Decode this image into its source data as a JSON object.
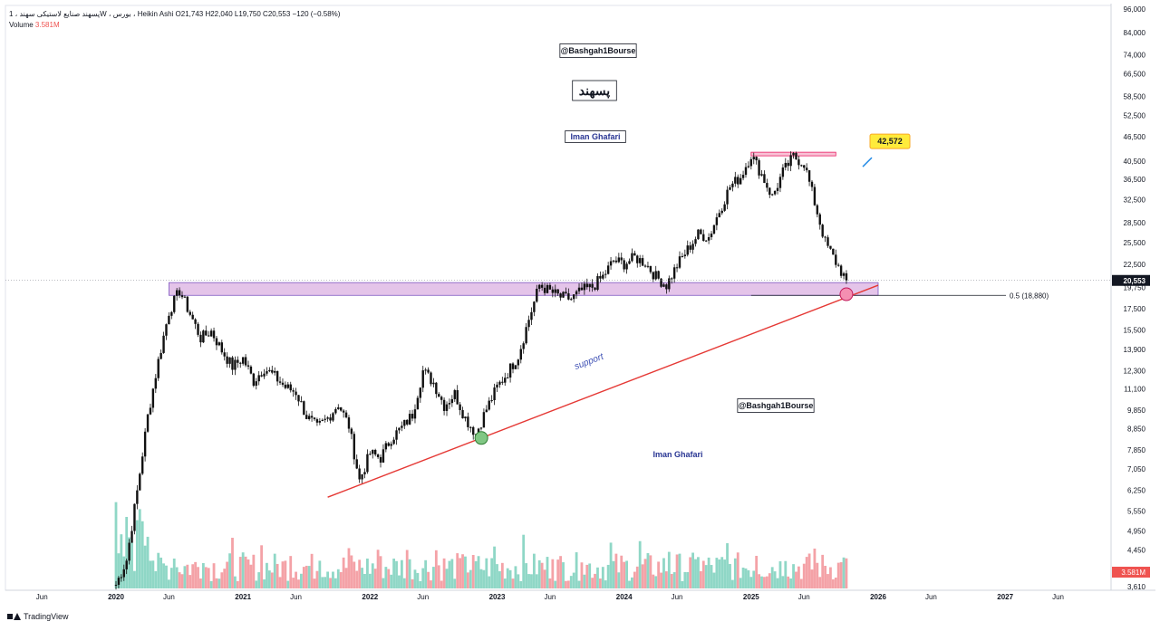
{
  "legend": {
    "symbol_line": "پسهند صنایع لاستیکی سهند ، 1W ، بورس ، Heikin Ashi  O21,743  H22,040  L19,750  C20,553  −120 (−0.58%)",
    "volume_label": "Volume",
    "volume_value": "3.581M"
  },
  "footer": {
    "brand": "TradingView"
  },
  "colors": {
    "candle": "#111111",
    "volume_up": "#8fd7c6",
    "volume_down": "#f4a2a7",
    "trendline": "#e53935",
    "zone_fill": "#e1bee7",
    "zone_border": "#7e57c2",
    "peak_zone": "#f8bbd0",
    "peak_label_bg": "#ffeb3b",
    "low_marker": "#81c784",
    "touch_marker": "#f48fb1",
    "watermark_text": "#1a237e",
    "label_text_blue": "#283593"
  },
  "chart_data": {
    "type": "candlestick",
    "scale": "log",
    "ylim": [
      3610,
      96000
    ],
    "y_ticks": [
      "96,000",
      "84,000",
      "74,000",
      "66,500",
      "58,500",
      "52,500",
      "46,500",
      "40,500",
      "36,500",
      "32,500",
      "28,500",
      "25,500",
      "22,500",
      "19,750",
      "17,500",
      "15,500",
      "13,900",
      "12,300",
      "11,100",
      "9,850",
      "8,850",
      "7,850",
      "7,050",
      "6,250",
      "5,550",
      "4,950",
      "4,450",
      "3,610"
    ],
    "x_labels": [
      "Jun",
      "2020",
      "Jun",
      "2021",
      "Jun",
      "2022",
      "Jun",
      "2023",
      "Jun",
      "2024",
      "Jun",
      "2025",
      "Jun",
      "2026",
      "Jun",
      "2027",
      "Jun"
    ],
    "price_path": [
      {
        "t": "2020-01",
        "v": 3650
      },
      {
        "t": "2020-02",
        "v": 4200
      },
      {
        "t": "2020-03",
        "v": 6200
      },
      {
        "t": "2020-04",
        "v": 9500
      },
      {
        "t": "2020-05",
        "v": 13000
      },
      {
        "t": "2020-06",
        "v": 17200
      },
      {
        "t": "2020-07",
        "v": 19400
      },
      {
        "t": "2020-08",
        "v": 17000
      },
      {
        "t": "2020-09",
        "v": 14800
      },
      {
        "t": "2020-10",
        "v": 15400
      },
      {
        "t": "2020-11",
        "v": 13800
      },
      {
        "t": "2020-12",
        "v": 12600
      },
      {
        "t": "2021-01",
        "v": 13200
      },
      {
        "t": "2021-02",
        "v": 11600
      },
      {
        "t": "2021-03",
        "v": 12500
      },
      {
        "t": "2021-04",
        "v": 11900
      },
      {
        "t": "2021-05",
        "v": 11200
      },
      {
        "t": "2021-06",
        "v": 10900
      },
      {
        "t": "2021-07",
        "v": 9500
      },
      {
        "t": "2021-08",
        "v": 8900
      },
      {
        "t": "2021-09",
        "v": 9400
      },
      {
        "t": "2021-10",
        "v": 10200
      },
      {
        "t": "2021-11",
        "v": 9000
      },
      {
        "t": "2021-12",
        "v": 6600
      },
      {
        "t": "2022-01",
        "v": 7700
      },
      {
        "t": "2022-02",
        "v": 7500
      },
      {
        "t": "2022-03",
        "v": 8400
      },
      {
        "t": "2022-04",
        "v": 8900
      },
      {
        "t": "2022-05",
        "v": 9600
      },
      {
        "t": "2022-06",
        "v": 12300
      },
      {
        "t": "2022-07",
        "v": 11500
      },
      {
        "t": "2022-08",
        "v": 10100
      },
      {
        "t": "2022-09",
        "v": 10800
      },
      {
        "t": "2022-10",
        "v": 9400
      },
      {
        "t": "2022-11",
        "v": 8600
      },
      {
        "t": "2022-12",
        "v": 9900
      },
      {
        "t": "2023-01",
        "v": 11200
      },
      {
        "t": "2023-02",
        "v": 12200
      },
      {
        "t": "2023-03",
        "v": 13400
      },
      {
        "t": "2023-04",
        "v": 16500
      },
      {
        "t": "2023-05",
        "v": 20000
      },
      {
        "t": "2023-06",
        "v": 19300
      },
      {
        "t": "2023-07",
        "v": 18700
      },
      {
        "t": "2023-08",
        "v": 18500
      },
      {
        "t": "2023-09",
        "v": 19400
      },
      {
        "t": "2023-10",
        "v": 19800
      },
      {
        "t": "2023-11",
        "v": 21000
      },
      {
        "t": "2023-12",
        "v": 23000
      },
      {
        "t": "2024-01",
        "v": 22600
      },
      {
        "t": "2024-02",
        "v": 23400
      },
      {
        "t": "2024-03",
        "v": 22700
      },
      {
        "t": "2024-04",
        "v": 21000
      },
      {
        "t": "2024-05",
        "v": 20000
      },
      {
        "t": "2024-06",
        "v": 22400
      },
      {
        "t": "2024-07",
        "v": 24500
      },
      {
        "t": "2024-08",
        "v": 26700
      },
      {
        "t": "2024-09",
        "v": 26300
      },
      {
        "t": "2024-10",
        "v": 30500
      },
      {
        "t": "2024-11",
        "v": 35000
      },
      {
        "t": "2024-12",
        "v": 37000
      },
      {
        "t": "2025-01",
        "v": 42000
      },
      {
        "t": "2025-02",
        "v": 37500
      },
      {
        "t": "2025-03",
        "v": 33000
      },
      {
        "t": "2025-04",
        "v": 38000
      },
      {
        "t": "2025-05",
        "v": 41500
      },
      {
        "t": "2025-06",
        "v": 40000
      },
      {
        "t": "2025-07",
        "v": 32000
      },
      {
        "t": "2025-08",
        "v": 25500
      },
      {
        "t": "2025-09",
        "v": 22800
      },
      {
        "t": "2025-10",
        "v": 20553
      }
    ],
    "last_close": "20,553",
    "last_volume": "3.581M",
    "support_line": {
      "from": {
        "t": "2021-09",
        "v": 6000
      },
      "to": {
        "t": "2026-01",
        "v": 20000
      }
    },
    "zones": [
      {
        "name": "support-zone",
        "from_t": "2020-06",
        "to_t": "2026-01",
        "v_low": 18880,
        "v_high": 20300
      },
      {
        "name": "peak-zone",
        "from_t": "2025-01",
        "to_t": "2025-09",
        "v_low": 41900,
        "v_high": 42572
      }
    ],
    "fib_level": {
      "label": "0.5 (18,880)",
      "v": 18880
    },
    "markers": [
      {
        "name": "low-touch",
        "t": "2022-11",
        "v": 8400
      },
      {
        "name": "current-touch",
        "t": "2025-10",
        "v": 19000
      }
    ],
    "labels": {
      "peak": "42,572",
      "support": "support",
      "watermark_top": "@Bashgah1Bourse",
      "watermark_mid": "@Bashgah1Bourse",
      "symbol_box": "پسهند",
      "author_top": "Iman Ghafari",
      "author_mid": "Iman Ghafari"
    }
  }
}
